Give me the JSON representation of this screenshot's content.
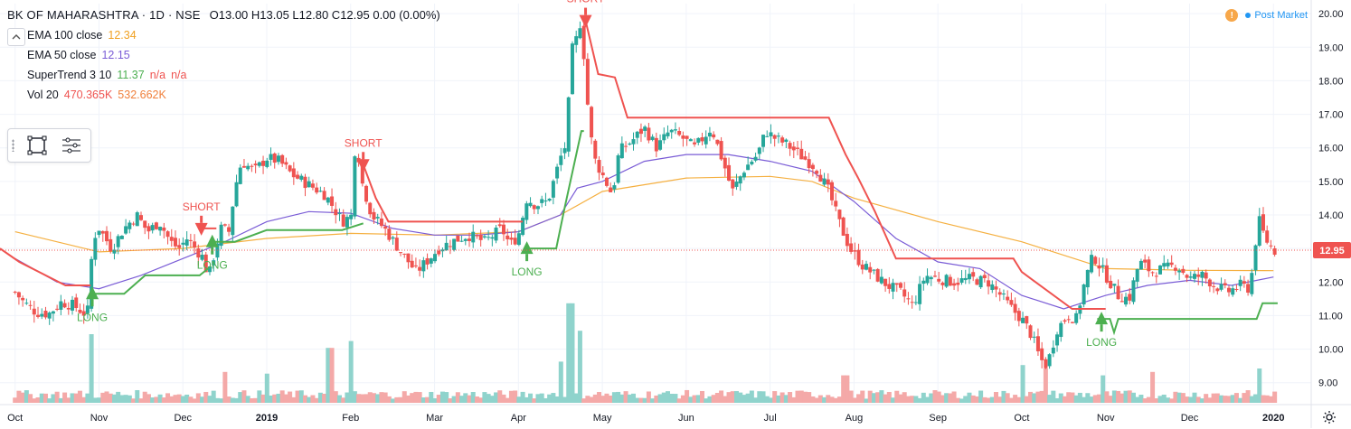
{
  "header": {
    "symbol": "BK OF MAHARASHTRA · 1D · NSE",
    "ohlc": "O13.00  H13.05  L12.80  C12.95  0.00 (0.00%)"
  },
  "indicators": [
    {
      "name": "EMA 100 close",
      "values": [
        "12.34"
      ],
      "colors": [
        "#f0a020"
      ]
    },
    {
      "name": "EMA 50 close",
      "values": [
        "12.15"
      ],
      "colors": [
        "#7a5cd6"
      ]
    },
    {
      "name": "SuperTrend 3 10",
      "values": [
        "11.37",
        "n/a",
        "n/a"
      ],
      "colors": [
        "#4caf50",
        "#ef5350",
        "#ef5350"
      ]
    },
    {
      "name": "Vol 20",
      "values": [
        "470.365K",
        "532.662K"
      ],
      "colors": [
        "#ef5350",
        "#f0803c"
      ]
    }
  ],
  "post_market_label": "Post Market",
  "warning_icon": "!",
  "colors": {
    "up": "#26a69a",
    "down": "#ef5350",
    "ema100": "#f5b041",
    "ema50": "#7a5cd6",
    "st_up": "#4caf50",
    "st_down": "#ef5350",
    "vol_up": "#8fd3cc",
    "vol_down": "#f4a9a8",
    "price_line": "#ef5350",
    "price_label_bg": "#ef5350"
  },
  "chart_data": {
    "type": "candlestick",
    "symbol": "BK OF MAHARASHTRA",
    "timeframe": "1D",
    "last_price": 12.95,
    "last_price_label": "12.95",
    "yaxis": {
      "ticks": [
        9,
        10,
        11,
        12,
        13,
        14,
        15,
        16,
        17,
        18,
        19,
        20
      ],
      "tick_labels": [
        "9.00",
        "10.00",
        "11.00",
        "12.00",
        "13.00",
        "14.00",
        "15.00",
        "16.00",
        "17.00",
        "18.00",
        "19.00",
        "20.00"
      ],
      "range": [
        8.4,
        20.3
      ]
    },
    "xaxis": {
      "labels": [
        "Oct",
        "Nov",
        "Dec",
        "2019",
        "Feb",
        "Mar",
        "Apr",
        "May",
        "Jun",
        "Jul",
        "Aug",
        "Sep",
        "Oct",
        "Nov",
        "Dec",
        "2020"
      ],
      "bold": [
        "2019",
        "2020"
      ],
      "month_index": [
        0,
        1,
        2,
        3,
        4,
        5,
        6,
        7,
        8,
        9,
        10,
        11,
        12,
        13,
        14,
        15
      ],
      "range": [
        -0.18,
        15.45
      ]
    },
    "price_path": [
      [
        0,
        11.7
      ],
      [
        0.1,
        11.4
      ],
      [
        0.25,
        11.1
      ],
      [
        0.4,
        11.05
      ],
      [
        0.55,
        11.4
      ],
      [
        0.7,
        11.3
      ],
      [
        0.86,
        11.0
      ],
      [
        0.92,
        13.0
      ],
      [
        0.98,
        13.7
      ],
      [
        1.05,
        13.4
      ],
      [
        1.15,
        13.0
      ],
      [
        1.3,
        13.6
      ],
      [
        1.45,
        14.0
      ],
      [
        1.58,
        13.5
      ],
      [
        1.72,
        13.8
      ],
      [
        1.85,
        13.2
      ],
      [
        1.95,
        13.0
      ],
      [
        2.05,
        13.3
      ],
      [
        2.18,
        12.9
      ],
      [
        2.25,
        12.7
      ],
      [
        2.3,
        12.1
      ],
      [
        2.45,
        13.6
      ],
      [
        2.55,
        13.5
      ],
      [
        2.62,
        14.8
      ],
      [
        2.7,
        15.6
      ],
      [
        2.85,
        15.3
      ],
      [
        3.0,
        15.7
      ],
      [
        3.15,
        15.6
      ],
      [
        3.3,
        15.2
      ],
      [
        3.5,
        14.9
      ],
      [
        3.7,
        14.6
      ],
      [
        3.9,
        13.8
      ],
      [
        4.02,
        14.0
      ],
      [
        4.06,
        16.6
      ],
      [
        4.12,
        15.1
      ],
      [
        4.25,
        14.0
      ],
      [
        4.4,
        13.6
      ],
      [
        4.6,
        12.9
      ],
      [
        4.78,
        12.3
      ],
      [
        4.9,
        12.6
      ],
      [
        5.05,
        13.0
      ],
      [
        5.2,
        13.2
      ],
      [
        5.4,
        13.4
      ],
      [
        5.6,
        13.2
      ],
      [
        5.8,
        13.6
      ],
      [
        5.9,
        13.1
      ],
      [
        6.0,
        13.4
      ],
      [
        6.1,
        14.5
      ],
      [
        6.2,
        14.3
      ],
      [
        6.35,
        14.4
      ],
      [
        6.5,
        15.7
      ],
      [
        6.58,
        16.2
      ],
      [
        6.62,
        18.8
      ],
      [
        6.7,
        19.3
      ],
      [
        6.75,
        19.9
      ],
      [
        6.8,
        18.0
      ],
      [
        6.85,
        16.6
      ],
      [
        6.9,
        15.7
      ],
      [
        7.0,
        15.2
      ],
      [
        7.12,
        14.6
      ],
      [
        7.2,
        15.9
      ],
      [
        7.35,
        16.2
      ],
      [
        7.5,
        16.6
      ],
      [
        7.65,
        16.0
      ],
      [
        7.8,
        16.5
      ],
      [
        7.95,
        16.3
      ],
      [
        8.1,
        16.0
      ],
      [
        8.3,
        16.6
      ],
      [
        8.45,
        15.5
      ],
      [
        8.55,
        14.7
      ],
      [
        8.7,
        15.4
      ],
      [
        8.85,
        15.8
      ],
      [
        8.95,
        16.5
      ],
      [
        9.05,
        16.3
      ],
      [
        9.2,
        16.1
      ],
      [
        9.4,
        15.7
      ],
      [
        9.55,
        15.4
      ],
      [
        9.7,
        14.7
      ],
      [
        9.82,
        13.8
      ],
      [
        9.95,
        13.0
      ],
      [
        10.1,
        12.5
      ],
      [
        10.25,
        12.2
      ],
      [
        10.4,
        11.9
      ],
      [
        10.55,
        11.7
      ],
      [
        10.7,
        11.3
      ],
      [
        10.85,
        12.2
      ],
      [
        11.0,
        12.1
      ],
      [
        11.2,
        12.0
      ],
      [
        11.4,
        12.1
      ],
      [
        11.6,
        12.0
      ],
      [
        11.75,
        11.6
      ],
      [
        11.88,
        11.2
      ],
      [
        12.0,
        10.9
      ],
      [
        12.12,
        10.4
      ],
      [
        12.22,
        9.7
      ],
      [
        12.3,
        9.5
      ],
      [
        12.42,
        10.6
      ],
      [
        12.55,
        11.0
      ],
      [
        12.65,
        10.9
      ],
      [
        12.75,
        12.0
      ],
      [
        12.85,
        12.8
      ],
      [
        12.95,
        12.4
      ],
      [
        13.05,
        12.0
      ],
      [
        13.15,
        11.6
      ],
      [
        13.28,
        11.5
      ],
      [
        13.4,
        12.6
      ],
      [
        13.55,
        12.3
      ],
      [
        13.7,
        12.4
      ],
      [
        13.85,
        12.5
      ],
      [
        14.0,
        12.1
      ],
      [
        14.15,
        12.2
      ],
      [
        14.3,
        11.9
      ],
      [
        14.45,
        11.7
      ],
      [
        14.6,
        11.9
      ],
      [
        14.72,
        11.8
      ],
      [
        14.82,
        13.9
      ],
      [
        14.9,
        13.3
      ],
      [
        15.0,
        12.95
      ],
      [
        15.05,
        12.9
      ]
    ],
    "ema100": [
      [
        0,
        13.5
      ],
      [
        1,
        12.9
      ],
      [
        2,
        13.0
      ],
      [
        3,
        13.3
      ],
      [
        4,
        13.45
      ],
      [
        5,
        13.4
      ],
      [
        6,
        13.5
      ],
      [
        6.5,
        14.0
      ],
      [
        7,
        14.7
      ],
      [
        8,
        15.1
      ],
      [
        9,
        15.15
      ],
      [
        9.5,
        15.0
      ],
      [
        10,
        14.5
      ],
      [
        11,
        13.8
      ],
      [
        12,
        13.2
      ],
      [
        12.5,
        12.8
      ],
      [
        13,
        12.4
      ],
      [
        14,
        12.35
      ],
      [
        15,
        12.34
      ]
    ],
    "ema50": [
      [
        0,
        12.7
      ],
      [
        0.5,
        12.0
      ],
      [
        1,
        11.8
      ],
      [
        1.5,
        12.2
      ],
      [
        2,
        12.7
      ],
      [
        2.5,
        13.2
      ],
      [
        3,
        13.8
      ],
      [
        3.5,
        14.1
      ],
      [
        4,
        14.05
      ],
      [
        4.5,
        13.6
      ],
      [
        5,
        13.4
      ],
      [
        5.5,
        13.4
      ],
      [
        6,
        13.5
      ],
      [
        6.5,
        14.0
      ],
      [
        6.7,
        14.8
      ],
      [
        7,
        15.0
      ],
      [
        7.5,
        15.6
      ],
      [
        8,
        15.8
      ],
      [
        8.5,
        15.8
      ],
      [
        9,
        15.6
      ],
      [
        9.5,
        15.3
      ],
      [
        10,
        14.4
      ],
      [
        10.5,
        13.3
      ],
      [
        11,
        12.6
      ],
      [
        11.5,
        12.4
      ],
      [
        12,
        11.6
      ],
      [
        12.5,
        11.2
      ],
      [
        13,
        11.6
      ],
      [
        13.5,
        11.9
      ],
      [
        14,
        12.05
      ],
      [
        14.5,
        11.9
      ],
      [
        15,
        12.15
      ]
    ],
    "supertrend_up": [
      [
        [
          0.92,
          11.65
        ],
        [
          1.3,
          11.65
        ],
        [
          1.55,
          12.2
        ],
        [
          2.2,
          12.2
        ],
        [
          2.3,
          12.4
        ]
      ],
      [
        [
          2.35,
          13.2
        ],
        [
          2.62,
          13.2
        ],
        [
          3,
          13.55
        ],
        [
          3.9,
          13.55
        ],
        [
          4.15,
          13.75
        ]
      ],
      [
        [
          6.1,
          13.0
        ],
        [
          6.45,
          13.0
        ],
        [
          6.55,
          14.2
        ],
        [
          6.75,
          16.5
        ],
        [
          6.78,
          16.5
        ]
      ],
      [
        [
          12.9,
          10.9
        ],
        [
          12.95,
          10.9
        ],
        [
          13.05,
          10.9
        ],
        [
          13.1,
          10.5
        ],
        [
          13.15,
          10.9
        ],
        [
          14.8,
          10.9
        ],
        [
          14.87,
          11.37
        ],
        [
          15.05,
          11.37
        ]
      ]
    ],
    "supertrend_down": [
      [
        [
          -0.18,
          13.0
        ],
        [
          0.05,
          12.6
        ],
        [
          0.6,
          11.9
        ],
        [
          0.9,
          11.9
        ]
      ],
      [
        [
          2.22,
          13.6
        ],
        [
          2.4,
          13.6
        ]
      ],
      [
        [
          4.15,
          15.5
        ],
        [
          4.3,
          14.5
        ],
        [
          4.45,
          13.8
        ],
        [
          6.05,
          13.8
        ]
      ],
      [
        [
          6.8,
          19.8
        ],
        [
          6.95,
          18.2
        ],
        [
          7.15,
          18.1
        ],
        [
          7.3,
          16.9
        ],
        [
          9.7,
          16.9
        ],
        [
          9.9,
          15.8
        ],
        [
          10.05,
          15.1
        ],
        [
          10.25,
          14.1
        ],
        [
          10.5,
          12.7
        ],
        [
          11.9,
          12.7
        ],
        [
          12.0,
          12.3
        ],
        [
          12.6,
          11.2
        ],
        [
          13.0,
          11.2
        ]
      ]
    ],
    "signals": [
      {
        "type": "LONG",
        "x": 0.92,
        "y": 11.65,
        "label": "LONG"
      },
      {
        "type": "LONG",
        "x": 2.35,
        "y": 13.2,
        "label": "LONG"
      },
      {
        "type": "LONG",
        "x": 6.1,
        "y": 13.0,
        "label": "LONG"
      },
      {
        "type": "LONG",
        "x": 12.95,
        "y": 10.9,
        "label": "LONG"
      },
      {
        "type": "SHORT",
        "x": 2.22,
        "y": 13.6,
        "label": "SHORT"
      },
      {
        "type": "SHORT",
        "x": 4.15,
        "y": 15.5,
        "label": "SHORT"
      },
      {
        "type": "SHORT",
        "x": 6.8,
        "y": 19.8,
        "label": "SHORT"
      }
    ],
    "volume_spikes": [
      [
        0.92,
        2.0
      ],
      [
        3.75,
        1.6
      ],
      [
        4.0,
        1.8
      ],
      [
        6.62,
        2.9
      ],
      [
        6.72,
        2.1
      ],
      [
        6.5,
        1.2
      ],
      [
        12.95,
        0.8
      ],
      [
        12.3,
        1.0
      ],
      [
        13.55,
        0.9
      ],
      [
        14.85,
        1.0
      ],
      [
        9.9,
        0.8
      ],
      [
        12.0,
        1.1
      ],
      [
        2.5,
        0.9
      ],
      [
        3.0,
        0.85
      ]
    ]
  }
}
